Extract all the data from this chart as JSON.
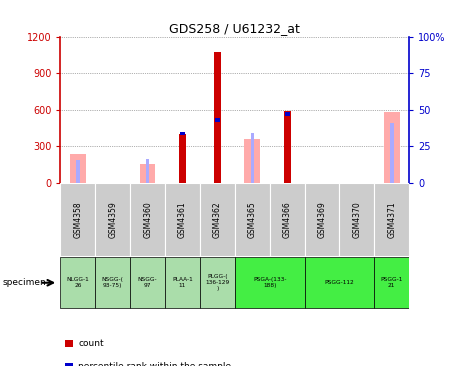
{
  "title": "GDS258 / U61232_at",
  "categories": [
    "GSM4358",
    "GSM4359",
    "GSM4360",
    "GSM4361",
    "GSM4362",
    "GSM4365",
    "GSM4366",
    "GSM4369",
    "GSM4370",
    "GSM4371"
  ],
  "count_values": [
    null,
    null,
    null,
    400,
    1075,
    null,
    590,
    null,
    null,
    null
  ],
  "percentile_values_left": [
    null,
    null,
    null,
    420,
    530,
    null,
    580,
    null,
    null,
    null
  ],
  "absent_value": [
    240,
    null,
    155,
    null,
    null,
    360,
    null,
    null,
    null,
    580
  ],
  "absent_rank": [
    190,
    null,
    200,
    null,
    null,
    410,
    null,
    null,
    null,
    490
  ],
  "ylim_left": [
    0,
    1200
  ],
  "ylim_right": [
    0,
    100
  ],
  "yticks_left": [
    0,
    300,
    600,
    900,
    1200
  ],
  "yticks_right": [
    0,
    25,
    50,
    75,
    100
  ],
  "ytick_labels_left": [
    "0",
    "300",
    "600",
    "900",
    "1200"
  ],
  "ytick_labels_right": [
    "0",
    "25",
    "50",
    "75",
    "100%"
  ],
  "specimen_groups": [
    {
      "label": "NLGG-1\n26",
      "color": "#aaddaa",
      "span": [
        0,
        1
      ]
    },
    {
      "label": "NSGG-(\n93-75)",
      "color": "#aaddaa",
      "span": [
        1,
        2
      ]
    },
    {
      "label": "NSGG-\n97",
      "color": "#aaddaa",
      "span": [
        2,
        3
      ]
    },
    {
      "label": "PLAA-1\n11",
      "color": "#aaddaa",
      "span": [
        3,
        4
      ]
    },
    {
      "label": "PLGG-(\n136-129\n)",
      "color": "#aaddaa",
      "span": [
        4,
        5
      ]
    },
    {
      "label": "PSGA-(133-\n188)",
      "color": "#44ee44",
      "span": [
        5,
        7
      ]
    },
    {
      "label": "PSGG-112",
      "color": "#44ee44",
      "span": [
        7,
        9
      ]
    },
    {
      "label": "PSGG-1\n21",
      "color": "#44ee44",
      "span": [
        9,
        10
      ]
    }
  ],
  "color_count": "#cc0000",
  "color_percentile": "#0000cc",
  "color_absent_value": "#ffaaaa",
  "color_absent_rank": "#aaaaff",
  "grid_color": "#666666",
  "left_axis_color": "#cc0000",
  "right_axis_color": "#0000cc",
  "xticklabel_bg": "#cccccc"
}
